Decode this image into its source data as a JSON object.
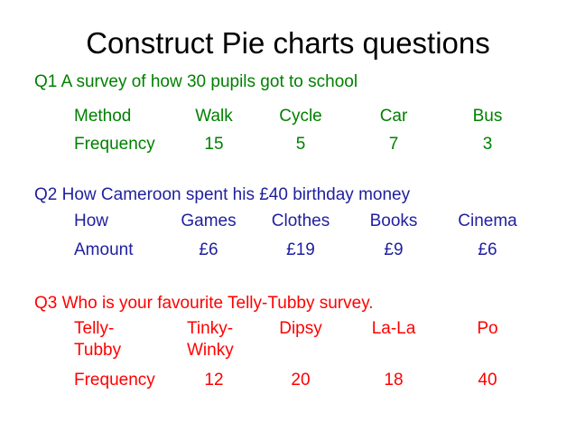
{
  "title": "Construct Pie charts questions",
  "colors": {
    "q1": "#008000",
    "q2": "#1f1fa0",
    "q3": "#ff0000",
    "title": "#000000"
  },
  "q1": {
    "heading": "Q1 A survey of how 30 pupils got to school",
    "row1": [
      "Method",
      "Walk",
      "Cycle",
      "Car",
      "Bus"
    ],
    "row2": [
      "Frequency",
      "15",
      "5",
      "7",
      "3"
    ]
  },
  "q2": {
    "heading": "Q2 How Cameroon spent his £40 birthday money",
    "row1": [
      "How",
      "Games",
      "Clothes",
      "Books",
      "Cinema"
    ],
    "row2": [
      "Amount",
      "£6",
      "£19",
      "£9",
      "£6"
    ]
  },
  "q3": {
    "heading": "Q3 Who is your favourite Telly-Tubby survey.",
    "row1": [
      "Telly-",
      "Tinky-",
      "Dipsy",
      "La-La",
      "Po"
    ],
    "row1b": [
      "Tubby",
      "Winky"
    ],
    "row2": [
      "Frequency",
      "12",
      "20",
      "18",
      "40"
    ]
  }
}
